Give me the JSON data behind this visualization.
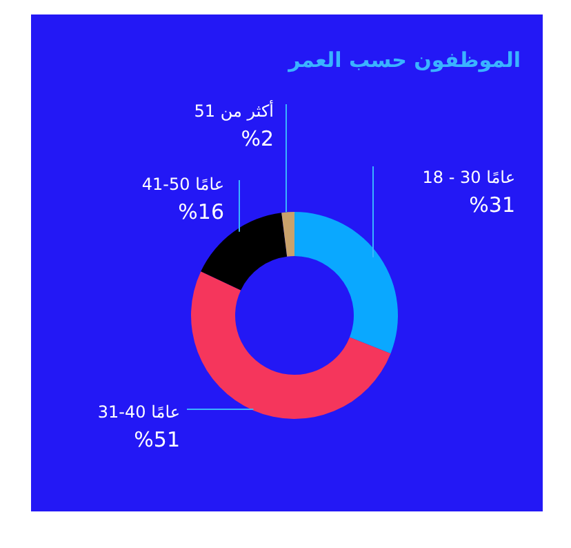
{
  "chart_data": {
    "type": "donut",
    "title": "الموظفون حسب العمر",
    "categories": [
      "18 - 30 عامًا",
      "31-40 عامًا",
      "41-50 عامًا",
      "أكثر من 51"
    ],
    "values": [
      31,
      51,
      16,
      2
    ],
    "colors": [
      "#0aa8ff",
      "#f5365c",
      "#000000",
      "#c9a26b"
    ],
    "value_labels": [
      "%31",
      "%51",
      "%16",
      "%2"
    ]
  }
}
